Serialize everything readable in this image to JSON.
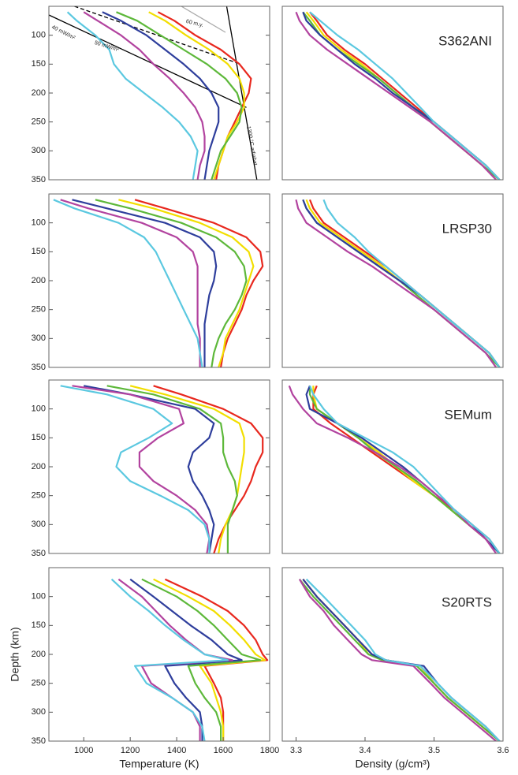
{
  "chart_data": [
    {
      "type": "line",
      "xlim": [
        850,
        1800
      ],
      "ylim": [
        350,
        50
      ],
      "yticks": [
        100,
        150,
        200,
        250,
        300,
        350
      ],
      "y": [
        60,
        75,
        100,
        125,
        150,
        175,
        200,
        225,
        250,
        275,
        300,
        325,
        350
      ],
      "series": [
        {
          "color": "#e8281e",
          "values": [
            1320,
            1390,
            1480,
            1590,
            1670,
            1720,
            1710,
            1680,
            1650,
            1620,
            1600,
            1580,
            1570
          ]
        },
        {
          "color": "#f2de00",
          "values": [
            1280,
            1350,
            1440,
            1540,
            1620,
            1670,
            1690,
            1690,
            1660,
            1620,
            1600,
            1580,
            1560
          ]
        },
        {
          "color": "#5db83a",
          "values": [
            1140,
            1230,
            1330,
            1430,
            1530,
            1610,
            1660,
            1680,
            1670,
            1630,
            1590,
            1570,
            1550
          ]
        },
        {
          "color": "#2e3e9c",
          "values": [
            1080,
            1160,
            1270,
            1350,
            1430,
            1500,
            1550,
            1580,
            1580,
            1560,
            1540,
            1530,
            1520
          ]
        },
        {
          "color": "#b2439f",
          "values": [
            1000,
            1060,
            1160,
            1240,
            1300,
            1370,
            1430,
            1480,
            1510,
            1520,
            1520,
            1500,
            1490
          ]
        },
        {
          "color": "#5bc8e0",
          "values": [
            930,
            970,
            1050,
            1110,
            1130,
            1180,
            1260,
            1340,
            1410,
            1460,
            1490,
            1480,
            1470
          ]
        }
      ],
      "reference_lines": [
        {
          "color": "#000000",
          "dashed": false,
          "x": [
            850,
            1700
          ],
          "y": [
            65,
            225
          ]
        },
        {
          "color": "#000000",
          "dashed": true,
          "x": [
            960,
            1660
          ],
          "y": [
            50,
            148
          ]
        },
        {
          "color": "#000000",
          "dashed": false,
          "x": [
            1615,
            1745
          ],
          "y": [
            50,
            350
          ]
        },
        {
          "color": "#aaaaaa",
          "dashed": false,
          "x": [
            1420,
            1610
          ],
          "y": [
            50,
            95
          ]
        }
      ],
      "annotations": [
        "40 mW/m²",
        "50 mW/m²",
        "1300 °C adiabat",
        "60 m.y."
      ]
    },
    {
      "type": "line",
      "title": "S362ANI",
      "xlim": [
        3.28,
        3.6
      ],
      "ylim": [
        350,
        50
      ],
      "y": [
        60,
        75,
        100,
        125,
        150,
        175,
        200,
        225,
        250,
        275,
        300,
        325,
        350
      ],
      "series": [
        {
          "color": "#e8281e",
          "values": [
            3.32,
            3.33,
            3.345,
            3.37,
            3.4,
            3.425,
            3.45,
            3.475,
            3.5,
            3.525,
            3.55,
            3.575,
            3.595
          ]
        },
        {
          "color": "#f2de00",
          "values": [
            3.315,
            3.325,
            3.34,
            3.365,
            3.395,
            3.42,
            3.445,
            3.47,
            3.495,
            3.52,
            3.545,
            3.57,
            3.595
          ]
        },
        {
          "color": "#5db83a",
          "values": [
            3.31,
            3.32,
            3.335,
            3.36,
            3.39,
            3.42,
            3.445,
            3.47,
            3.495,
            3.52,
            3.545,
            3.57,
            3.595
          ]
        },
        {
          "color": "#2e3e9c",
          "values": [
            3.31,
            3.315,
            3.335,
            3.36,
            3.385,
            3.415,
            3.44,
            3.47,
            3.5,
            3.525,
            3.55,
            3.575,
            3.595
          ]
        },
        {
          "color": "#b2439f",
          "values": [
            3.3,
            3.305,
            3.32,
            3.345,
            3.375,
            3.405,
            3.435,
            3.465,
            3.495,
            3.52,
            3.545,
            3.57,
            3.59
          ]
        },
        {
          "color": "#5bc8e0",
          "values": [
            3.32,
            3.335,
            3.36,
            3.39,
            3.415,
            3.44,
            3.46,
            3.48,
            3.5,
            3.525,
            3.55,
            3.575,
            3.595
          ]
        }
      ]
    },
    {
      "type": "line",
      "xlim": [
        850,
        1800
      ],
      "ylim": [
        350,
        50
      ],
      "yticks": [
        100,
        150,
        200,
        250,
        300,
        350
      ],
      "y": [
        60,
        75,
        100,
        125,
        150,
        175,
        200,
        225,
        250,
        275,
        300,
        325,
        350
      ],
      "series": [
        {
          "color": "#e8281e",
          "values": [
            1220,
            1350,
            1560,
            1700,
            1760,
            1770,
            1730,
            1700,
            1680,
            1650,
            1620,
            1600,
            1590
          ]
        },
        {
          "color": "#f2de00",
          "values": [
            1150,
            1300,
            1500,
            1640,
            1710,
            1730,
            1710,
            1690,
            1670,
            1640,
            1610,
            1600,
            1580
          ]
        },
        {
          "color": "#5db83a",
          "values": [
            1050,
            1200,
            1420,
            1570,
            1650,
            1690,
            1700,
            1680,
            1650,
            1610,
            1580,
            1560,
            1550
          ]
        },
        {
          "color": "#2e3e9c",
          "values": [
            950,
            1100,
            1350,
            1500,
            1560,
            1570,
            1560,
            1540,
            1530,
            1520,
            1520,
            1520,
            1520
          ]
        },
        {
          "color": "#b2439f",
          "values": [
            900,
            1020,
            1250,
            1400,
            1470,
            1490,
            1490,
            1490,
            1490,
            1490,
            1500,
            1500,
            1500
          ]
        },
        {
          "color": "#5bc8e0",
          "values": [
            870,
            960,
            1150,
            1260,
            1310,
            1340,
            1370,
            1400,
            1430,
            1460,
            1490,
            1500,
            1510
          ]
        }
      ]
    },
    {
      "type": "line",
      "title": "LRSP30",
      "xlim": [
        3.28,
        3.6
      ],
      "ylim": [
        350,
        50
      ],
      "y": [
        60,
        75,
        100,
        125,
        150,
        175,
        200,
        225,
        250,
        275,
        300,
        325,
        350
      ],
      "series": [
        {
          "color": "#e8281e",
          "values": [
            3.32,
            3.325,
            3.34,
            3.37,
            3.4,
            3.43,
            3.455,
            3.48,
            3.505,
            3.53,
            3.555,
            3.58,
            3.595
          ]
        },
        {
          "color": "#f2de00",
          "values": [
            3.315,
            3.32,
            3.335,
            3.365,
            3.395,
            3.425,
            3.45,
            3.48,
            3.505,
            3.53,
            3.555,
            3.58,
            3.595
          ]
        },
        {
          "color": "#5db83a",
          "values": [
            3.31,
            3.315,
            3.33,
            3.36,
            3.39,
            3.42,
            3.45,
            3.475,
            3.5,
            3.525,
            3.55,
            3.575,
            3.595
          ]
        },
        {
          "color": "#2e3e9c",
          "values": [
            3.31,
            3.315,
            3.33,
            3.36,
            3.39,
            3.42,
            3.45,
            3.48,
            3.505,
            3.53,
            3.555,
            3.58,
            3.595
          ]
        },
        {
          "color": "#b2439f",
          "values": [
            3.3,
            3.303,
            3.315,
            3.345,
            3.375,
            3.41,
            3.44,
            3.47,
            3.5,
            3.525,
            3.55,
            3.575,
            3.59
          ]
        },
        {
          "color": "#5bc8e0",
          "values": [
            3.34,
            3.345,
            3.36,
            3.385,
            3.405,
            3.43,
            3.455,
            3.48,
            3.505,
            3.53,
            3.555,
            3.58,
            3.595
          ]
        }
      ]
    },
    {
      "type": "line",
      "xlim": [
        850,
        1800
      ],
      "ylim": [
        350,
        50
      ],
      "yticks": [
        100,
        150,
        200,
        250,
        300,
        350
      ],
      "y": [
        60,
        75,
        100,
        125,
        150,
        175,
        200,
        225,
        250,
        275,
        300,
        325,
        350
      ],
      "series": [
        {
          "color": "#e8281e",
          "values": [
            1300,
            1420,
            1600,
            1720,
            1770,
            1770,
            1740,
            1720,
            1690,
            1650,
            1610,
            1580,
            1560
          ]
        },
        {
          "color": "#f2de00",
          "values": [
            1200,
            1350,
            1560,
            1670,
            1690,
            1690,
            1680,
            1670,
            1660,
            1640,
            1610,
            1590,
            1580
          ]
        },
        {
          "color": "#5db83a",
          "values": [
            1100,
            1300,
            1500,
            1590,
            1600,
            1600,
            1620,
            1650,
            1660,
            1640,
            1620,
            1620,
            1620
          ]
        },
        {
          "color": "#2e3e9c",
          "values": [
            1000,
            1200,
            1480,
            1560,
            1540,
            1470,
            1450,
            1470,
            1510,
            1540,
            1560,
            1550,
            1540
          ]
        },
        {
          "color": "#b2439f",
          "values": [
            950,
            1200,
            1410,
            1430,
            1320,
            1240,
            1240,
            1300,
            1400,
            1480,
            1530,
            1540,
            1530
          ]
        },
        {
          "color": "#5bc8e0",
          "values": [
            900,
            1100,
            1300,
            1380,
            1280,
            1160,
            1140,
            1200,
            1330,
            1450,
            1520,
            1540,
            1540
          ]
        }
      ]
    },
    {
      "type": "line",
      "title": "SEMum",
      "xlim": [
        3.28,
        3.6
      ],
      "ylim": [
        350,
        50
      ],
      "y": [
        60,
        75,
        100,
        125,
        150,
        175,
        200,
        225,
        250,
        275,
        300,
        325,
        350
      ],
      "series": [
        {
          "color": "#e8281e",
          "values": [
            3.33,
            3.325,
            3.325,
            3.35,
            3.38,
            3.41,
            3.44,
            3.47,
            3.5,
            3.53,
            3.555,
            3.58,
            3.595
          ]
        },
        {
          "color": "#f2de00",
          "values": [
            3.325,
            3.325,
            3.33,
            3.36,
            3.39,
            3.42,
            3.445,
            3.47,
            3.5,
            3.525,
            3.55,
            3.575,
            3.595
          ]
        },
        {
          "color": "#5db83a",
          "values": [
            3.32,
            3.32,
            3.33,
            3.36,
            3.39,
            3.415,
            3.445,
            3.475,
            3.5,
            3.525,
            3.55,
            3.575,
            3.595
          ]
        },
        {
          "color": "#2e3e9c",
          "values": [
            3.32,
            3.315,
            3.32,
            3.36,
            3.395,
            3.425,
            3.455,
            3.48,
            3.505,
            3.53,
            3.555,
            3.575,
            3.595
          ]
        },
        {
          "color": "#b2439f",
          "values": [
            3.29,
            3.295,
            3.31,
            3.33,
            3.375,
            3.415,
            3.45,
            3.48,
            3.505,
            3.53,
            3.55,
            3.575,
            3.59
          ]
        },
        {
          "color": "#5bc8e0",
          "values": [
            3.32,
            3.325,
            3.34,
            3.36,
            3.4,
            3.44,
            3.47,
            3.49,
            3.51,
            3.53,
            3.555,
            3.58,
            3.595
          ]
        }
      ]
    },
    {
      "type": "line",
      "xlim": [
        850,
        1800
      ],
      "ylim": [
        350,
        50
      ],
      "yticks": [
        100,
        150,
        200,
        250,
        300,
        350
      ],
      "xticks": [
        1000,
        1200,
        1400,
        1600,
        1800
      ],
      "xlabel": "Temperature (K)",
      "ylabel": "Depth (km)",
      "y": [
        70,
        100,
        125,
        150,
        175,
        200,
        210,
        220,
        250,
        275,
        300,
        325,
        350
      ],
      "series": [
        {
          "color": "#e8281e",
          "values": [
            1350,
            1510,
            1620,
            1690,
            1740,
            1770,
            1790,
            1520,
            1560,
            1590,
            1600,
            1600,
            1600
          ]
        },
        {
          "color": "#f2de00",
          "values": [
            1300,
            1450,
            1560,
            1630,
            1690,
            1740,
            1780,
            1500,
            1550,
            1570,
            1590,
            1600,
            1600
          ]
        },
        {
          "color": "#5db83a",
          "values": [
            1250,
            1400,
            1490,
            1560,
            1620,
            1680,
            1760,
            1450,
            1480,
            1520,
            1570,
            1590,
            1590
          ]
        },
        {
          "color": "#2e3e9c",
          "values": [
            1200,
            1300,
            1380,
            1460,
            1550,
            1620,
            1680,
            1350,
            1390,
            1440,
            1500,
            1510,
            1510
          ]
        },
        {
          "color": "#b2439f",
          "values": [
            1150,
            1250,
            1310,
            1370,
            1440,
            1520,
            1640,
            1250,
            1290,
            1380,
            1470,
            1500,
            1500
          ]
        },
        {
          "color": "#5bc8e0",
          "values": [
            1120,
            1200,
            1280,
            1350,
            1430,
            1520,
            1620,
            1220,
            1270,
            1380,
            1470,
            1510,
            1520
          ]
        }
      ]
    },
    {
      "type": "line",
      "title": "S20RTS",
      "xlim": [
        3.28,
        3.6
      ],
      "ylim": [
        350,
        50
      ],
      "xticks": [
        3.3,
        3.4,
        3.5,
        3.6
      ],
      "xlabel": "Density (g/cm³)",
      "y": [
        70,
        100,
        125,
        150,
        175,
        200,
        210,
        220,
        250,
        275,
        300,
        325,
        350
      ],
      "series": [
        {
          "color": "#e8281e",
          "values": [
            3.31,
            3.33,
            3.35,
            3.37,
            3.39,
            3.41,
            3.43,
            3.48,
            3.5,
            3.52,
            3.545,
            3.57,
            3.595
          ]
        },
        {
          "color": "#f2de00",
          "values": [
            3.31,
            3.33,
            3.35,
            3.37,
            3.39,
            3.405,
            3.43,
            3.48,
            3.5,
            3.52,
            3.545,
            3.57,
            3.595
          ]
        },
        {
          "color": "#5db83a",
          "values": [
            3.305,
            3.325,
            3.345,
            3.365,
            3.385,
            3.405,
            3.425,
            3.475,
            3.5,
            3.52,
            3.545,
            3.57,
            3.595
          ]
        },
        {
          "color": "#2e3e9c",
          "values": [
            3.31,
            3.33,
            3.35,
            3.37,
            3.39,
            3.41,
            3.43,
            3.485,
            3.505,
            3.525,
            3.55,
            3.575,
            3.595
          ]
        },
        {
          "color": "#b2439f",
          "values": [
            3.305,
            3.32,
            3.34,
            3.355,
            3.375,
            3.395,
            3.41,
            3.47,
            3.495,
            3.515,
            3.54,
            3.565,
            3.59
          ]
        },
        {
          "color": "#5bc8e0",
          "values": [
            3.315,
            3.34,
            3.36,
            3.38,
            3.4,
            3.415,
            3.43,
            3.48,
            3.505,
            3.525,
            3.55,
            3.575,
            3.595
          ]
        }
      ]
    }
  ]
}
